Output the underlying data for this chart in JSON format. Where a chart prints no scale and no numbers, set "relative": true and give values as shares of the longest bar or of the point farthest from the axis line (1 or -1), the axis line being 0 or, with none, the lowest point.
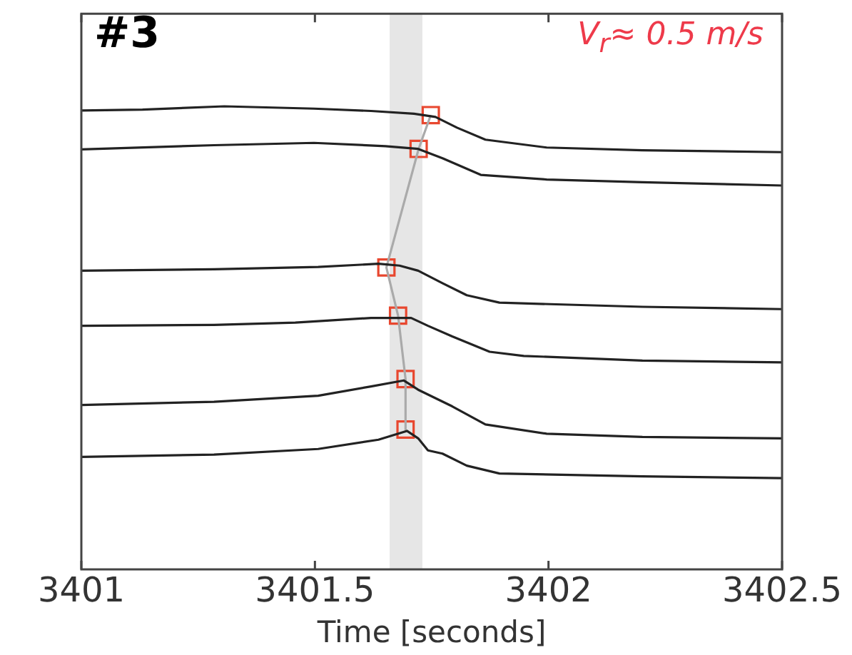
{
  "chart_data": {
    "type": "line",
    "title": "#3",
    "xlabel": "Time [seconds]",
    "annotations": [
      "V$_{r}$≈ 0.5 m/s"
    ],
    "relative": true,
    "xlim": [
      3401,
      3402.5
    ],
    "xticks": [
      3401,
      3401.5,
      3402,
      3402.5
    ],
    "tick_labels": "x",
    "grid": false,
    "legend": false,
    "bands": [
      {
        "axis": "x",
        "from": 3401.66,
        "to": 3401.73,
        "color": "#e6e6e6"
      }
    ],
    "series": [
      {
        "color": "#222222",
        "marker": "none",
        "x": [
          3401.0,
          3401.131,
          3401.306,
          3401.498,
          3401.62,
          3401.712,
          3401.758,
          3401.804,
          3401.865,
          3401.996,
          3402.201,
          3402.5
        ],
        "values": [
          0.991,
          0.993,
          1.0,
          0.995,
          0.99,
          0.984,
          0.977,
          0.954,
          0.928,
          0.911,
          0.905,
          0.901
        ]
      },
      {
        "color": "#222222",
        "marker": "none",
        "x": [
          3401.0,
          3401.284,
          3401.498,
          3401.651,
          3401.721,
          3401.773,
          3401.855,
          3401.996,
          3402.201,
          3402.5
        ],
        "values": [
          0.907,
          0.916,
          0.921,
          0.914,
          0.908,
          0.888,
          0.852,
          0.842,
          0.836,
          0.829
        ]
      },
      {
        "color": "#222222",
        "marker": "none",
        "x": [
          3401.0,
          3401.284,
          3401.507,
          3401.636,
          3401.681,
          3401.721,
          3401.773,
          3401.825,
          3401.895,
          3402.201,
          3402.5
        ],
        "values": [
          0.645,
          0.648,
          0.653,
          0.66,
          0.656,
          0.645,
          0.618,
          0.592,
          0.576,
          0.567,
          0.562
        ]
      },
      {
        "color": "#222222",
        "marker": "none",
        "x": [
          3401.0,
          3401.284,
          3401.458,
          3401.62,
          3401.706,
          3401.742,
          3401.794,
          3401.874,
          3401.947,
          3402.201,
          3402.5
        ],
        "values": [
          0.526,
          0.528,
          0.533,
          0.543,
          0.543,
          0.526,
          0.503,
          0.47,
          0.461,
          0.451,
          0.447
        ]
      },
      {
        "color": "#222222",
        "marker": "none",
        "x": [
          3401.0,
          3401.284,
          3401.507,
          3401.62,
          3401.69,
          3401.721,
          3401.794,
          3401.865,
          3401.996,
          3402.201,
          3402.5
        ],
        "values": [
          0.355,
          0.362,
          0.375,
          0.395,
          0.408,
          0.388,
          0.352,
          0.313,
          0.293,
          0.286,
          0.283
        ]
      },
      {
        "color": "#222222",
        "marker": "none",
        "x": [
          3401.0,
          3401.284,
          3401.507,
          3401.636,
          3401.697,
          3401.721,
          3401.742,
          3401.773,
          3401.825,
          3401.895,
          3402.201,
          3402.5
        ],
        "values": [
          0.243,
          0.248,
          0.26,
          0.28,
          0.299,
          0.283,
          0.257,
          0.25,
          0.224,
          0.207,
          0.201,
          0.197
        ]
      },
      {
        "color": "#aaaaaa",
        "marker": "none",
        "x": [
          3401.748,
          3401.722,
          3401.653,
          3401.678,
          3401.694,
          3401.694
        ],
        "values": [
          0.981,
          0.908,
          0.652,
          0.548,
          0.411,
          0.302
        ]
      },
      {
        "type": "scatter",
        "color": "#e8472f",
        "marker": "square",
        "x": [
          3401.748,
          3401.722,
          3401.653,
          3401.678,
          3401.694,
          3401.694
        ],
        "values": [
          0.981,
          0.908,
          0.652,
          0.548,
          0.411,
          0.302
        ]
      }
    ]
  }
}
